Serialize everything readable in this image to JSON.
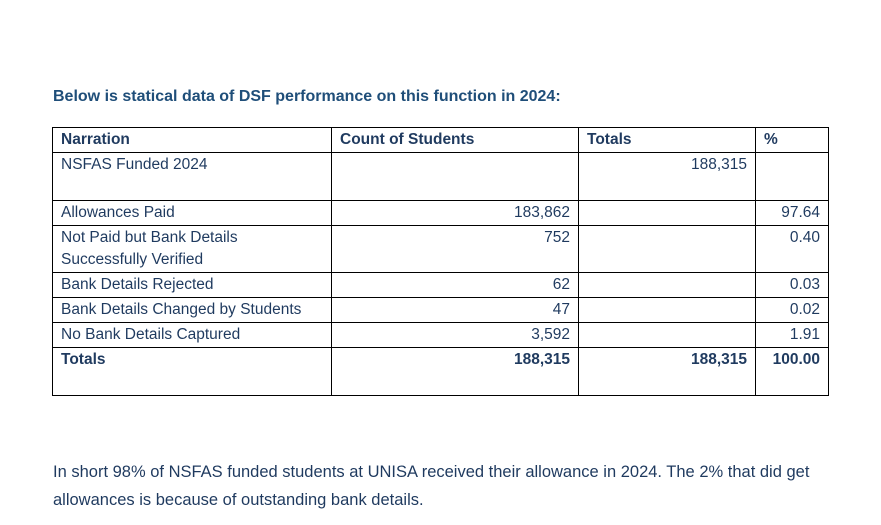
{
  "heading": "Below is statical data of DSF performance on this function in 2024:",
  "table": {
    "headers": [
      "Narration",
      "Count of Students",
      "Totals",
      "%"
    ],
    "rows": [
      {
        "narration": "NSFAS Funded 2024",
        "count": "",
        "total": "188,315",
        "pct": ""
      },
      {
        "narration": "Allowances Paid",
        "count": "183,862",
        "total": "",
        "pct": "97.64"
      },
      {
        "narration": "Not Paid but Bank Details Successfully Verified",
        "count": "752",
        "total": "",
        "pct": "0.40"
      },
      {
        "narration": "Bank Details Rejected",
        "count": "62",
        "total": "",
        "pct": "0.03"
      },
      {
        "narration": "Bank Details Changed by Students",
        "count": "47",
        "total": "",
        "pct": "0.02"
      },
      {
        "narration": "No Bank Details Captured",
        "count": "3,592",
        "total": "",
        "pct": "1.91"
      },
      {
        "narration": "Totals",
        "count": "188,315",
        "total": "188,315",
        "pct": "100.00"
      }
    ]
  },
  "summary": "In short 98% of NSFAS funded students at UNISA received their allowance in 2024. The 2% that did get allowances is because of outstanding bank details."
}
